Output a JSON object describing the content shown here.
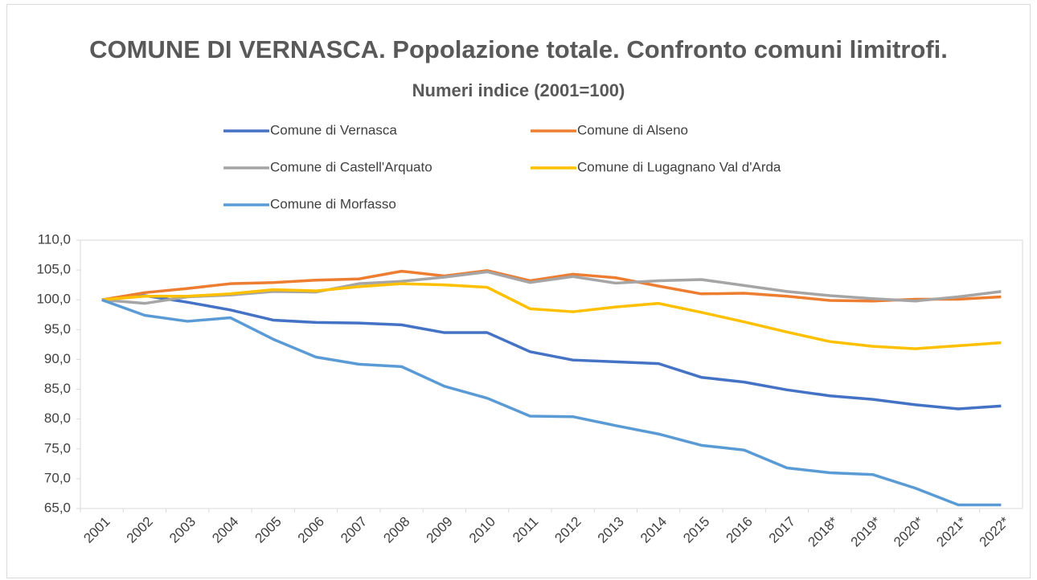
{
  "chart_data": {
    "type": "line",
    "title": "COMUNE DI VERNASCA. Popolazione totale. Confronto comuni limitrofi.",
    "subtitle": "Numeri indice (2001=100)",
    "categories": [
      "2001",
      "2002",
      "2003",
      "2004",
      "2005",
      "2006",
      "2007",
      "2008",
      "2009",
      "2010",
      "2011",
      "2012",
      "2013",
      "2014",
      "2015",
      "2016",
      "2017",
      "2018*",
      "2019*",
      "2020*",
      "2021*",
      "2022*"
    ],
    "series": [
      {
        "name": "Comune di Vernasca",
        "color": "#4472c4",
        "values": [
          100,
          100.7,
          99.6,
          98.3,
          96.6,
          96.2,
          96.1,
          95.8,
          94.5,
          94.5,
          91.3,
          89.9,
          89.6,
          89.3,
          87.0,
          86.2,
          84.9,
          83.9,
          83.3,
          82.4,
          81.7,
          82.2
        ]
      },
      {
        "name": "Comune di Alseno",
        "color": "#ed7d31",
        "values": [
          100,
          101.2,
          101.9,
          102.7,
          102.9,
          103.3,
          103.5,
          104.8,
          104.0,
          104.9,
          103.2,
          104.3,
          103.7,
          102.3,
          101.0,
          101.1,
          100.6,
          99.9,
          99.8,
          100.1,
          100.1,
          100.5
        ]
      },
      {
        "name": "Comune di Castell'Arquato",
        "color": "#a5a5a5",
        "values": [
          100,
          99.4,
          100.5,
          100.8,
          101.4,
          101.3,
          102.7,
          103.1,
          103.8,
          104.7,
          102.9,
          103.9,
          102.8,
          103.2,
          103.4,
          102.4,
          101.4,
          100.7,
          100.2,
          99.8,
          100.5,
          101.4
        ]
      },
      {
        "name": "Comune di Lugagnano Val d'Arda",
        "color": "#ffc000",
        "values": [
          100,
          100.6,
          100.6,
          101.0,
          101.7,
          101.5,
          102.2,
          102.7,
          102.5,
          102.1,
          98.5,
          98.0,
          98.8,
          99.4,
          97.9,
          96.3,
          94.6,
          93.0,
          92.2,
          91.8,
          92.3,
          92.8
        ]
      },
      {
        "name": "Comune di Morfasso",
        "color": "#5b9bd5",
        "values": [
          100,
          97.4,
          96.4,
          97.0,
          93.4,
          90.4,
          89.2,
          88.8,
          85.5,
          83.5,
          80.5,
          80.4,
          78.9,
          77.5,
          75.6,
          74.8,
          71.8,
          71.0,
          70.7,
          68.4,
          65.6,
          65.6
        ]
      }
    ],
    "ylim": [
      65,
      110
    ],
    "yticks": [
      {
        "value": 65,
        "label": "65,0"
      },
      {
        "value": 70,
        "label": "70,0"
      },
      {
        "value": 75,
        "label": "75,0"
      },
      {
        "value": 80,
        "label": "80,0"
      },
      {
        "value": 85,
        "label": "85,0"
      },
      {
        "value": 90,
        "label": "90,0"
      },
      {
        "value": 95,
        "label": "95,0"
      },
      {
        "value": 100,
        "label": "100,0"
      },
      {
        "value": 105,
        "label": "105,0"
      },
      {
        "value": 110,
        "label": "110,0"
      }
    ],
    "grid": false,
    "legend": "top"
  }
}
